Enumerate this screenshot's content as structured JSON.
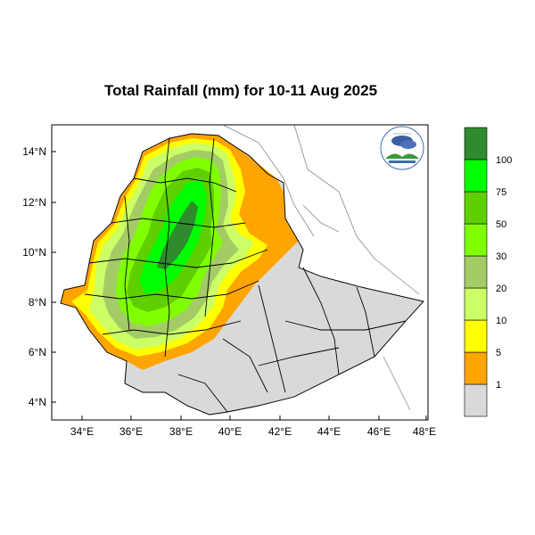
{
  "title": "Total Rainfall (mm) for 10-11 Aug 2025",
  "axes": {
    "lat_ticks": [
      "14°N",
      "12°N",
      "10°N",
      "8°N",
      "6°N",
      "4°N"
    ],
    "lon_ticks": [
      "34°E",
      "36°E",
      "38°E",
      "40°E",
      "42°E",
      "44°E",
      "46°E",
      "48°E"
    ]
  },
  "colorbar": {
    "labels": [
      "1",
      "5",
      "10",
      "20",
      "30",
      "50",
      "75",
      "100"
    ],
    "colors": [
      "#d9d9d9",
      "#ffa500",
      "#ffff00",
      "#ccff66",
      "#a3cc66",
      "#80ff00",
      "#5ed000",
      "#00ff00",
      "#2e8b2e"
    ]
  },
  "map_colors": {
    "ocean_land": "#ffffff",
    "no_rain": "#d9d9d9",
    "boundary": "#000000",
    "coast": "#888888"
  },
  "logo": {
    "emblem": "NMA weather agency logo"
  }
}
